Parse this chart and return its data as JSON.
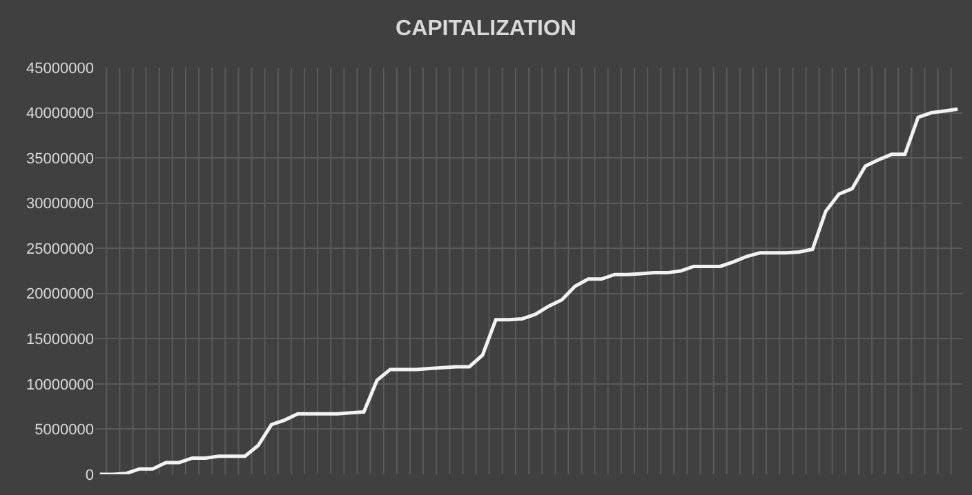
{
  "chart_data": {
    "type": "line",
    "title": "CAPITALIZATION",
    "categories": [
      null,
      null,
      null,
      null,
      null,
      null,
      null,
      null,
      null,
      null,
      null,
      null,
      null,
      null,
      null,
      null,
      null,
      null,
      null,
      null,
      null,
      null,
      null,
      null,
      null,
      null,
      null,
      null,
      null,
      null,
      null,
      null,
      null,
      null,
      null,
      null,
      null,
      null,
      null,
      null,
      null,
      null,
      null,
      null,
      null,
      null,
      null,
      null,
      null,
      null,
      null,
      null,
      null,
      null,
      null,
      null,
      null,
      null,
      null,
      null,
      null,
      null,
      null,
      null,
      null,
      null
    ],
    "series": [
      {
        "color": "#f2f2f2",
        "values": [
          0,
          0,
          100000,
          600000,
          600000,
          1300000,
          1300000,
          1800000,
          1800000,
          2000000,
          2000000,
          2000000,
          3200000,
          5500000,
          6000000,
          6700000,
          6700000,
          6700000,
          6700000,
          6800000,
          6900000,
          10400000,
          11600000,
          11600000,
          11600000,
          11700000,
          11800000,
          11900000,
          11900000,
          13200000,
          17100000,
          17100000,
          17200000,
          17700000,
          18600000,
          19300000,
          20800000,
          21600000,
          21600000,
          22100000,
          22100000,
          22200000,
          22300000,
          22300000,
          22500000,
          23000000,
          23000000,
          23000000,
          23500000,
          24100000,
          24500000,
          24500000,
          24500000,
          24600000,
          24900000,
          29100000,
          31000000,
          31600000,
          34100000,
          34800000,
          35400000,
          35400000,
          39500000,
          40000000,
          40200000,
          40400000
        ]
      }
    ],
    "ylim": [
      0,
      45000000
    ],
    "yticks": [
      0,
      5000000,
      10000000,
      15000000,
      20000000,
      25000000,
      30000000,
      35000000,
      40000000,
      45000000
    ],
    "grid": true,
    "marker": "none",
    "line_style": "solid"
  }
}
